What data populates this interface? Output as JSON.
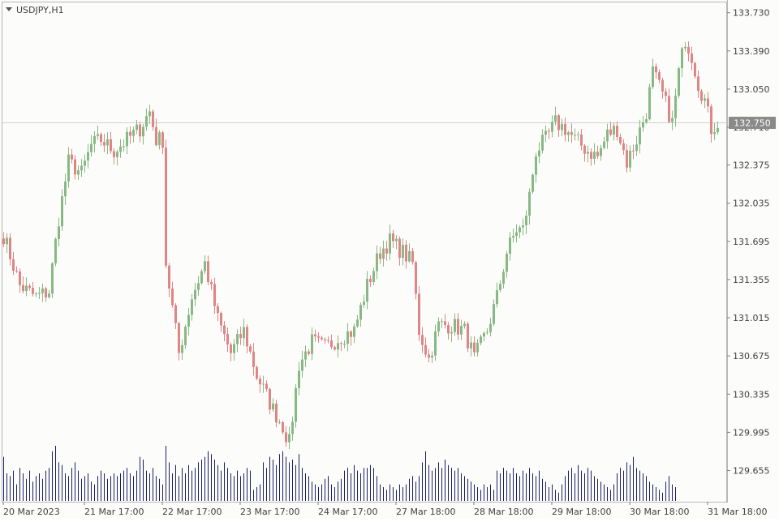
{
  "window": {
    "symbol_title": "USDJPY,H1"
  },
  "colors": {
    "background": "#fcfcfa",
    "frame": "#b8b8b8",
    "bull": "#88b985",
    "bear": "#e08585",
    "volume": "#1b1f66",
    "bid_line": "#d2d2d2",
    "price_label_bg": "#8a8a8a",
    "text": "#404040"
  },
  "chart_data": {
    "type": "candlestick",
    "symbol": "USDJPY",
    "timeframe": "H1",
    "current_price": 132.75,
    "current_price_label": "132.750",
    "ylim": [
      129.5,
      133.8
    ],
    "y_ticks": [
      "133.730",
      "133.390",
      "133.050",
      "132.710",
      "132.375",
      "132.035",
      "131.695",
      "131.355",
      "131.015",
      "130.675",
      "130.335",
      "129.995",
      "129.655"
    ],
    "x_labels": [
      "20 Mar 2023",
      "21 Mar 17:00",
      "22 Mar 17:00",
      "23 Mar 17:00",
      "24 Mar 17:00",
      "27 Mar 18:00",
      "28 Mar 18:00",
      "29 Mar 18:00",
      "30 Mar 18:00",
      "31 Mar 18:00"
    ],
    "grid": false,
    "anchors": [
      [
        0,
        131.75
      ],
      [
        5,
        131.3
      ],
      [
        10,
        131.2
      ],
      [
        14,
        131.25
      ],
      [
        17,
        131.9
      ],
      [
        20,
        132.4
      ],
      [
        24,
        132.3
      ],
      [
        27,
        132.55
      ],
      [
        30,
        132.6
      ],
      [
        34,
        132.5
      ],
      [
        38,
        132.6
      ],
      [
        42,
        132.7
      ],
      [
        45,
        132.85
      ],
      [
        47,
        132.6
      ],
      [
        49,
        132.6
      ],
      [
        50,
        131.5
      ],
      [
        54,
        130.7
      ],
      [
        58,
        131.2
      ],
      [
        62,
        131.5
      ],
      [
        66,
        131.0
      ],
      [
        70,
        130.7
      ],
      [
        74,
        130.9
      ],
      [
        78,
        130.5
      ],
      [
        83,
        130.2
      ],
      [
        86,
        130.05
      ],
      [
        88,
        129.9
      ],
      [
        91,
        130.6
      ],
      [
        95,
        130.8
      ],
      [
        99,
        130.75
      ],
      [
        104,
        130.85
      ],
      [
        108,
        130.9
      ],
      [
        112,
        131.3
      ],
      [
        116,
        131.6
      ],
      [
        119,
        131.7
      ],
      [
        123,
        131.6
      ],
      [
        126,
        131.5
      ],
      [
        128,
        130.9
      ],
      [
        131,
        130.65
      ],
      [
        134,
        130.95
      ],
      [
        138,
        130.95
      ],
      [
        142,
        130.9
      ],
      [
        145,
        130.65
      ],
      [
        149,
        130.9
      ],
      [
        152,
        131.2
      ],
      [
        155,
        131.6
      ],
      [
        158,
        131.8
      ],
      [
        160,
        131.8
      ],
      [
        162,
        132.1
      ],
      [
        164,
        132.5
      ],
      [
        167,
        132.6
      ],
      [
        170,
        132.75
      ],
      [
        173,
        132.7
      ],
      [
        176,
        132.6
      ],
      [
        180,
        132.5
      ],
      [
        183,
        132.45
      ],
      [
        186,
        132.65
      ],
      [
        189,
        132.7
      ],
      [
        192,
        132.4
      ],
      [
        195,
        132.6
      ],
      [
        198,
        132.85
      ],
      [
        200,
        133.2
      ],
      [
        203,
        133.0
      ],
      [
        206,
        132.75
      ],
      [
        208,
        133.2
      ],
      [
        210,
        133.5
      ],
      [
        212,
        133.35
      ],
      [
        214,
        133.1
      ],
      [
        216,
        132.95
      ],
      [
        218,
        132.7
      ],
      [
        220,
        132.75
      ]
    ],
    "volume_rel": [
      0.8,
      0.5,
      0.45,
      0.55,
      0.3,
      0.6,
      0.5,
      0.4,
      0.55,
      0.35,
      0.45,
      0.5,
      0.4,
      0.55,
      0.6,
      0.9,
      1.0,
      0.7,
      0.65,
      0.5,
      0.45,
      0.6,
      0.7,
      0.55,
      0.4,
      0.45,
      0.5,
      0.35,
      0.3,
      0.45,
      0.55,
      0.5,
      0.4,
      0.45,
      0.5,
      0.45,
      0.5,
      0.55,
      0.6,
      0.5,
      0.45,
      0.55,
      0.8,
      0.75,
      0.55,
      0.5,
      0.6,
      0.45,
      0.4,
      0.3,
      1.0,
      0.7,
      0.5,
      0.65,
      0.45,
      0.6,
      0.5,
      0.65,
      0.55,
      0.6,
      0.7,
      0.75,
      0.8,
      0.9,
      0.85,
      0.75,
      0.65,
      0.55,
      0.7,
      0.6,
      0.5,
      0.45,
      0.55,
      0.45,
      0.5,
      0.6,
      0.55,
      0.2,
      0.25,
      0.3,
      0.7,
      0.6,
      0.8,
      0.75,
      0.65,
      0.85,
      0.9,
      0.8,
      0.7,
      0.75,
      0.65,
      0.85,
      0.6,
      0.5,
      0.45,
      0.35,
      0.3,
      0.25,
      0.3,
      0.4,
      0.45,
      0.3,
      0.25,
      0.35,
      0.4,
      0.55,
      0.6,
      0.5,
      0.65,
      0.55,
      0.5,
      0.6,
      0.6,
      0.65,
      0.6,
      0.45,
      0.3,
      0.25,
      0.2,
      0.3,
      0.25,
      0.2,
      0.3,
      0.25,
      0.3,
      0.4,
      0.45,
      0.35,
      0.45,
      0.7,
      0.9,
      0.65,
      0.55,
      0.6,
      0.7,
      0.6,
      0.75,
      0.65,
      0.6,
      0.55,
      0.6,
      0.5,
      0.45,
      0.4,
      0.35,
      0.3,
      0.25,
      0.2,
      0.3,
      0.25,
      0.3,
      0.2,
      0.55,
      0.5,
      0.6,
      0.55,
      0.5,
      0.6,
      0.5,
      0.45,
      0.55,
      0.5,
      0.6,
      0.5,
      0.45,
      0.55,
      0.4,
      0.35,
      0.25,
      0.3,
      0.2,
      0.15,
      0.3,
      0.45,
      0.55,
      0.6,
      0.5,
      0.65,
      0.55,
      0.5,
      0.6,
      0.55,
      0.45,
      0.4,
      0.35,
      0.3,
      0.25,
      0.2,
      0.3,
      0.5,
      0.6,
      0.55,
      0.7,
      0.65,
      0.8,
      0.6,
      0.55,
      0.5,
      0.45,
      0.35,
      0.3,
      0.25,
      0.2,
      0.15,
      0.35,
      0.45,
      0.3,
      0.25
    ]
  }
}
